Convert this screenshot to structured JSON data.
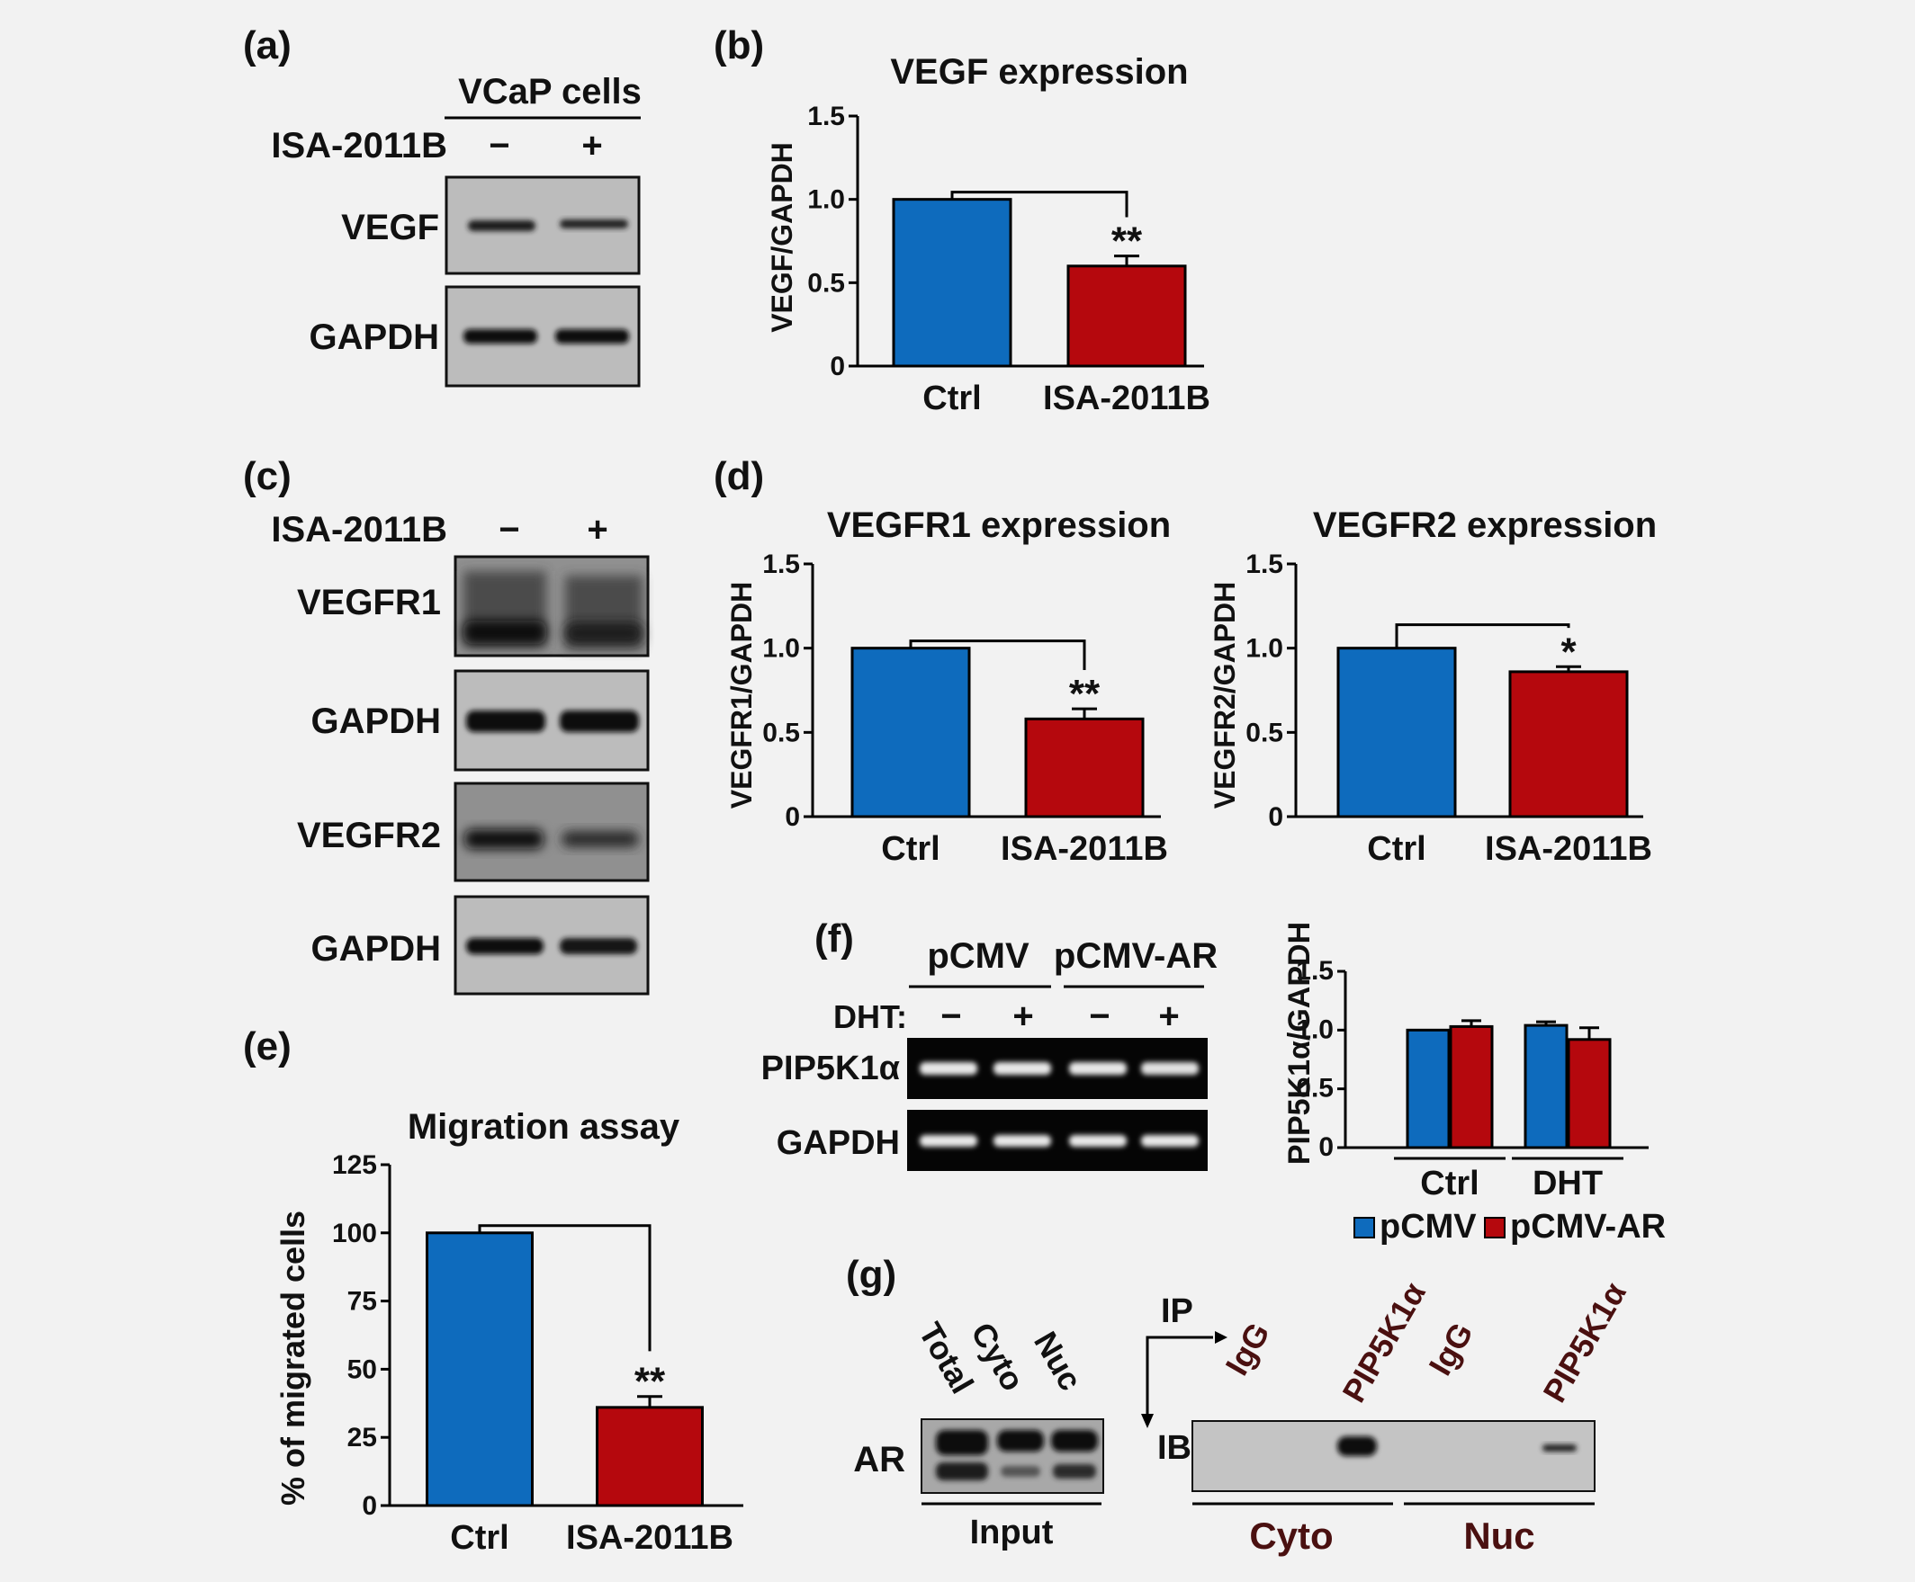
{
  "panels": {
    "a": "(a)",
    "b": "(b)",
    "c": "(c)",
    "d": "(d)",
    "e": "(e)",
    "f": "(f)",
    "g": "(g)"
  },
  "blot_a": {
    "cell_label": "VCaP cells",
    "treatment": "ISA-2011B",
    "minus": "−",
    "plus": "+",
    "rows": [
      "VEGF",
      "GAPDH"
    ]
  },
  "blot_c": {
    "treatment": "ISA-2011B",
    "minus": "−",
    "plus": "+",
    "rows": [
      "VEGFR1",
      "GAPDH",
      "VEGFR2",
      "GAPDH"
    ]
  },
  "blot_f": {
    "groups": [
      "pCMV",
      "pCMV-AR"
    ],
    "treatment": "DHT:",
    "lanes": [
      "−",
      "+",
      "−",
      "+"
    ],
    "rows": [
      "PIP5K1α",
      "GAPDH"
    ]
  },
  "blot_g": {
    "input_lanes": [
      "Total",
      "Cyto",
      "Nuc"
    ],
    "ip_label": "IP",
    "ib_label": "IB",
    "ip_lanes": [
      "IgG",
      "PIP5K1α",
      "IgG",
      "PIP5K1α"
    ],
    "row": "AR",
    "input_label": "Input",
    "fractions": [
      "Cyto",
      "Nuc"
    ]
  },
  "colors": {
    "ctrl": "#0e6bbd",
    "treated": "#b5080d"
  },
  "chart_data": [
    {
      "panel": "b",
      "type": "bar",
      "title": "VEGF expression",
      "ylabel": "VEGF/GAPDH",
      "categories": [
        "Ctrl",
        "ISA-2011B"
      ],
      "values": [
        1.0,
        0.6
      ],
      "errors": [
        0.0,
        0.06
      ],
      "ylim": [
        0,
        1.5
      ],
      "yticks": [
        "0",
        "0.5",
        "1.0",
        "1.5"
      ],
      "significance": "**"
    },
    {
      "panel": "d1",
      "type": "bar",
      "title": "VEGFR1 expression",
      "ylabel": "VEGFR1/GAPDH",
      "categories": [
        "Ctrl",
        "ISA-2011B"
      ],
      "values": [
        1.0,
        0.58
      ],
      "errors": [
        0.0,
        0.06
      ],
      "ylim": [
        0,
        1.5
      ],
      "yticks": [
        "0",
        "0.5",
        "1.0",
        "1.5"
      ],
      "significance": "**"
    },
    {
      "panel": "d2",
      "type": "bar",
      "title": "VEGFR2 expression",
      "ylabel": "VEGFR2/GAPDH",
      "categories": [
        "Ctrl",
        "ISA-2011B"
      ],
      "values": [
        1.0,
        0.86
      ],
      "errors": [
        0.0,
        0.03
      ],
      "ylim": [
        0,
        1.5
      ],
      "yticks": [
        "0",
        "0.5",
        "1.0",
        "1.5"
      ],
      "significance": "*"
    },
    {
      "panel": "e",
      "type": "bar",
      "title": "Migration assay",
      "ylabel": "% of migrated cells",
      "categories": [
        "Ctrl",
        "ISA-2011B"
      ],
      "values": [
        100,
        36
      ],
      "errors": [
        0,
        4
      ],
      "ylim": [
        0,
        125
      ],
      "yticks": [
        "0",
        "25",
        "50",
        "75",
        "100",
        "125"
      ],
      "significance": "**"
    },
    {
      "panel": "f",
      "type": "bar",
      "ylabel": "PIP5K1α/GAPDH",
      "categories": [
        "Ctrl",
        "DHT"
      ],
      "series": [
        {
          "name": "pCMV",
          "values": [
            1.0,
            1.04
          ],
          "errors": [
            0.0,
            0.03
          ]
        },
        {
          "name": "pCMV-AR",
          "values": [
            1.03,
            0.92
          ],
          "errors": [
            0.05,
            0.1
          ]
        }
      ],
      "ylim": [
        0,
        1.5
      ],
      "yticks": [
        "0",
        "0.5",
        "1.0",
        "1.5"
      ]
    }
  ]
}
